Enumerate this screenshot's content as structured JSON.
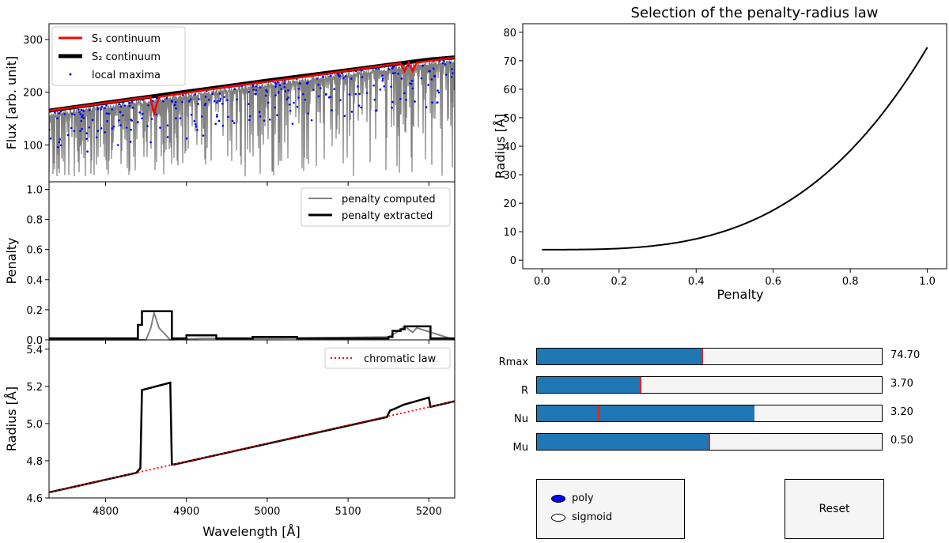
{
  "figure": {
    "flux_panel": {
      "ylabel": "Flux [arb. unit]",
      "yticks": [
        "100",
        "200",
        "300"
      ],
      "ylim": [
        30,
        330
      ],
      "legend": [
        "S₁ continuum",
        "S₂ continuum",
        "local maxima"
      ],
      "colors": {
        "spectrum": "#808080",
        "s1": "#ff0000",
        "s2": "#000000",
        "maxima": "#0000ff"
      }
    },
    "penalty_panel": {
      "ylabel": "Penalty",
      "yticks": [
        "0.0",
        "0.2",
        "0.4",
        "0.6",
        "0.8",
        "1.0"
      ],
      "ylim": [
        0,
        1.05
      ],
      "legend": [
        "penalty computed",
        "penalty extracted"
      ]
    },
    "radius_panel": {
      "ylabel": "Radius [Å]",
      "yticks": [
        "4.6",
        "4.8",
        "5.0",
        "5.2",
        "5.4"
      ],
      "ylim": [
        4.6,
        5.45
      ],
      "legend": [
        "chromatic law"
      ],
      "xlabel": "Wavelength [Å]",
      "xticks": [
        "4800",
        "4900",
        "5000",
        "5100",
        "5200"
      ],
      "xlim": [
        4730,
        5232
      ]
    },
    "law_panel": {
      "title": "Selection of the penalty-radius law",
      "xlabel": "Penalty",
      "ylabel": "Radius [Å]",
      "xticks": [
        "0.0",
        "0.2",
        "0.4",
        "0.6",
        "0.8",
        "1.0"
      ],
      "yticks": [
        "0",
        "10",
        "20",
        "30",
        "40",
        "50",
        "60",
        "70",
        "80"
      ]
    }
  },
  "chart_data": [
    {
      "type": "line",
      "title": "",
      "xlabel": "",
      "ylabel": "Flux [arb. unit]",
      "xlim": [
        4730,
        5232
      ],
      "ylim": [
        30,
        330
      ],
      "series": [
        {
          "name": "S₁ continuum",
          "x": [
            4730,
            4855,
            4860,
            4866,
            4950,
            5050,
            5165,
            5170,
            5175,
            5180,
            5185,
            5232
          ],
          "values": [
            165,
            191,
            160,
            191,
            210,
            230,
            255,
            240,
            256,
            240,
            256,
            266
          ]
        },
        {
          "name": "S₂ continuum",
          "x": [
            4730,
            4800,
            4900,
            5000,
            5100,
            5150,
            5200,
            5232
          ],
          "values": [
            165,
            180,
            201,
            222,
            242,
            252,
            262,
            266
          ]
        }
      ]
    },
    {
      "type": "line",
      "xlim": [
        4730,
        5232
      ],
      "ylim": [
        0,
        1.05
      ],
      "ylabel": "Penalty",
      "series": [
        {
          "name": "penalty computed",
          "x": [
            4730,
            4850,
            4856,
            4860,
            4866,
            4880,
            4920,
            5010,
            5150,
            5160,
            5170,
            5180,
            5185,
            5232
          ],
          "values": [
            0.0,
            0.0,
            0.08,
            0.18,
            0.08,
            0.0,
            0.01,
            0.01,
            0.02,
            0.05,
            0.09,
            0.05,
            0.08,
            0.0
          ]
        },
        {
          "name": "penalty extracted",
          "x": [
            4730,
            4830,
            4840,
            4845,
            4880,
            4882,
            4898,
            4900,
            4935,
            4937,
            4980,
            4982,
            5035,
            5037,
            5150,
            5155,
            5165,
            5170,
            5200,
            5202,
            5232
          ],
          "values": [
            0.01,
            0.01,
            0.1,
            0.19,
            0.19,
            0.01,
            0.01,
            0.03,
            0.03,
            0.01,
            0.01,
            0.02,
            0.02,
            0.01,
            0.02,
            0.06,
            0.07,
            0.09,
            0.09,
            0.01,
            0.01
          ]
        }
      ]
    },
    {
      "type": "line",
      "xlim": [
        4730,
        5232
      ],
      "ylim": [
        4.6,
        5.45
      ],
      "xlabel": "Wavelength [Å]",
      "ylabel": "Radius [Å]",
      "series": [
        {
          "name": "chromatic law",
          "x": [
            4730,
            5232
          ],
          "values": [
            4.63,
            5.12
          ]
        },
        {
          "name": "radius",
          "x": [
            4730,
            4838,
            4843,
            4845,
            4880,
            4882,
            4885,
            5148,
            5152,
            5158,
            5168,
            5200,
            5202,
            5232
          ],
          "values": [
            4.63,
            4.735,
            4.76,
            5.18,
            5.22,
            4.78,
            4.78,
            5.035,
            5.07,
            5.08,
            5.1,
            5.14,
            5.09,
            5.12
          ]
        }
      ]
    },
    {
      "type": "line",
      "title": "Selection of the penalty-radius law",
      "xlabel": "Penalty",
      "ylabel": "Radius [Å]",
      "xlim": [
        -0.05,
        1.05
      ],
      "ylim": [
        -3,
        83
      ],
      "series": [
        {
          "name": "law",
          "x": [
            0,
            0.1,
            0.2,
            0.3,
            0.4,
            0.5,
            0.6,
            0.7,
            0.8,
            0.9,
            1.0
          ],
          "values": [
            3.7,
            3.74,
            4.8,
            6.8,
            11.8,
            12.58,
            19.7,
            27.4,
            38.6,
            54.2,
            74.7
          ]
        }
      ]
    }
  ],
  "sliders": [
    {
      "label": "Rmax",
      "value": "74.70",
      "fill": 0.48,
      "init": 0.48
    },
    {
      "label": "R",
      "value": "3.70",
      "fill": 0.3,
      "init": 0.3
    },
    {
      "label": "Nu",
      "value": "3.20",
      "fill": 0.63,
      "init": 0.18
    },
    {
      "label": "Mu",
      "value": "0.50",
      "fill": 0.5,
      "init": 0.5
    }
  ],
  "radio": {
    "options": [
      "poly",
      "sigmoid"
    ],
    "selected": "poly"
  },
  "reset_label": "Reset"
}
